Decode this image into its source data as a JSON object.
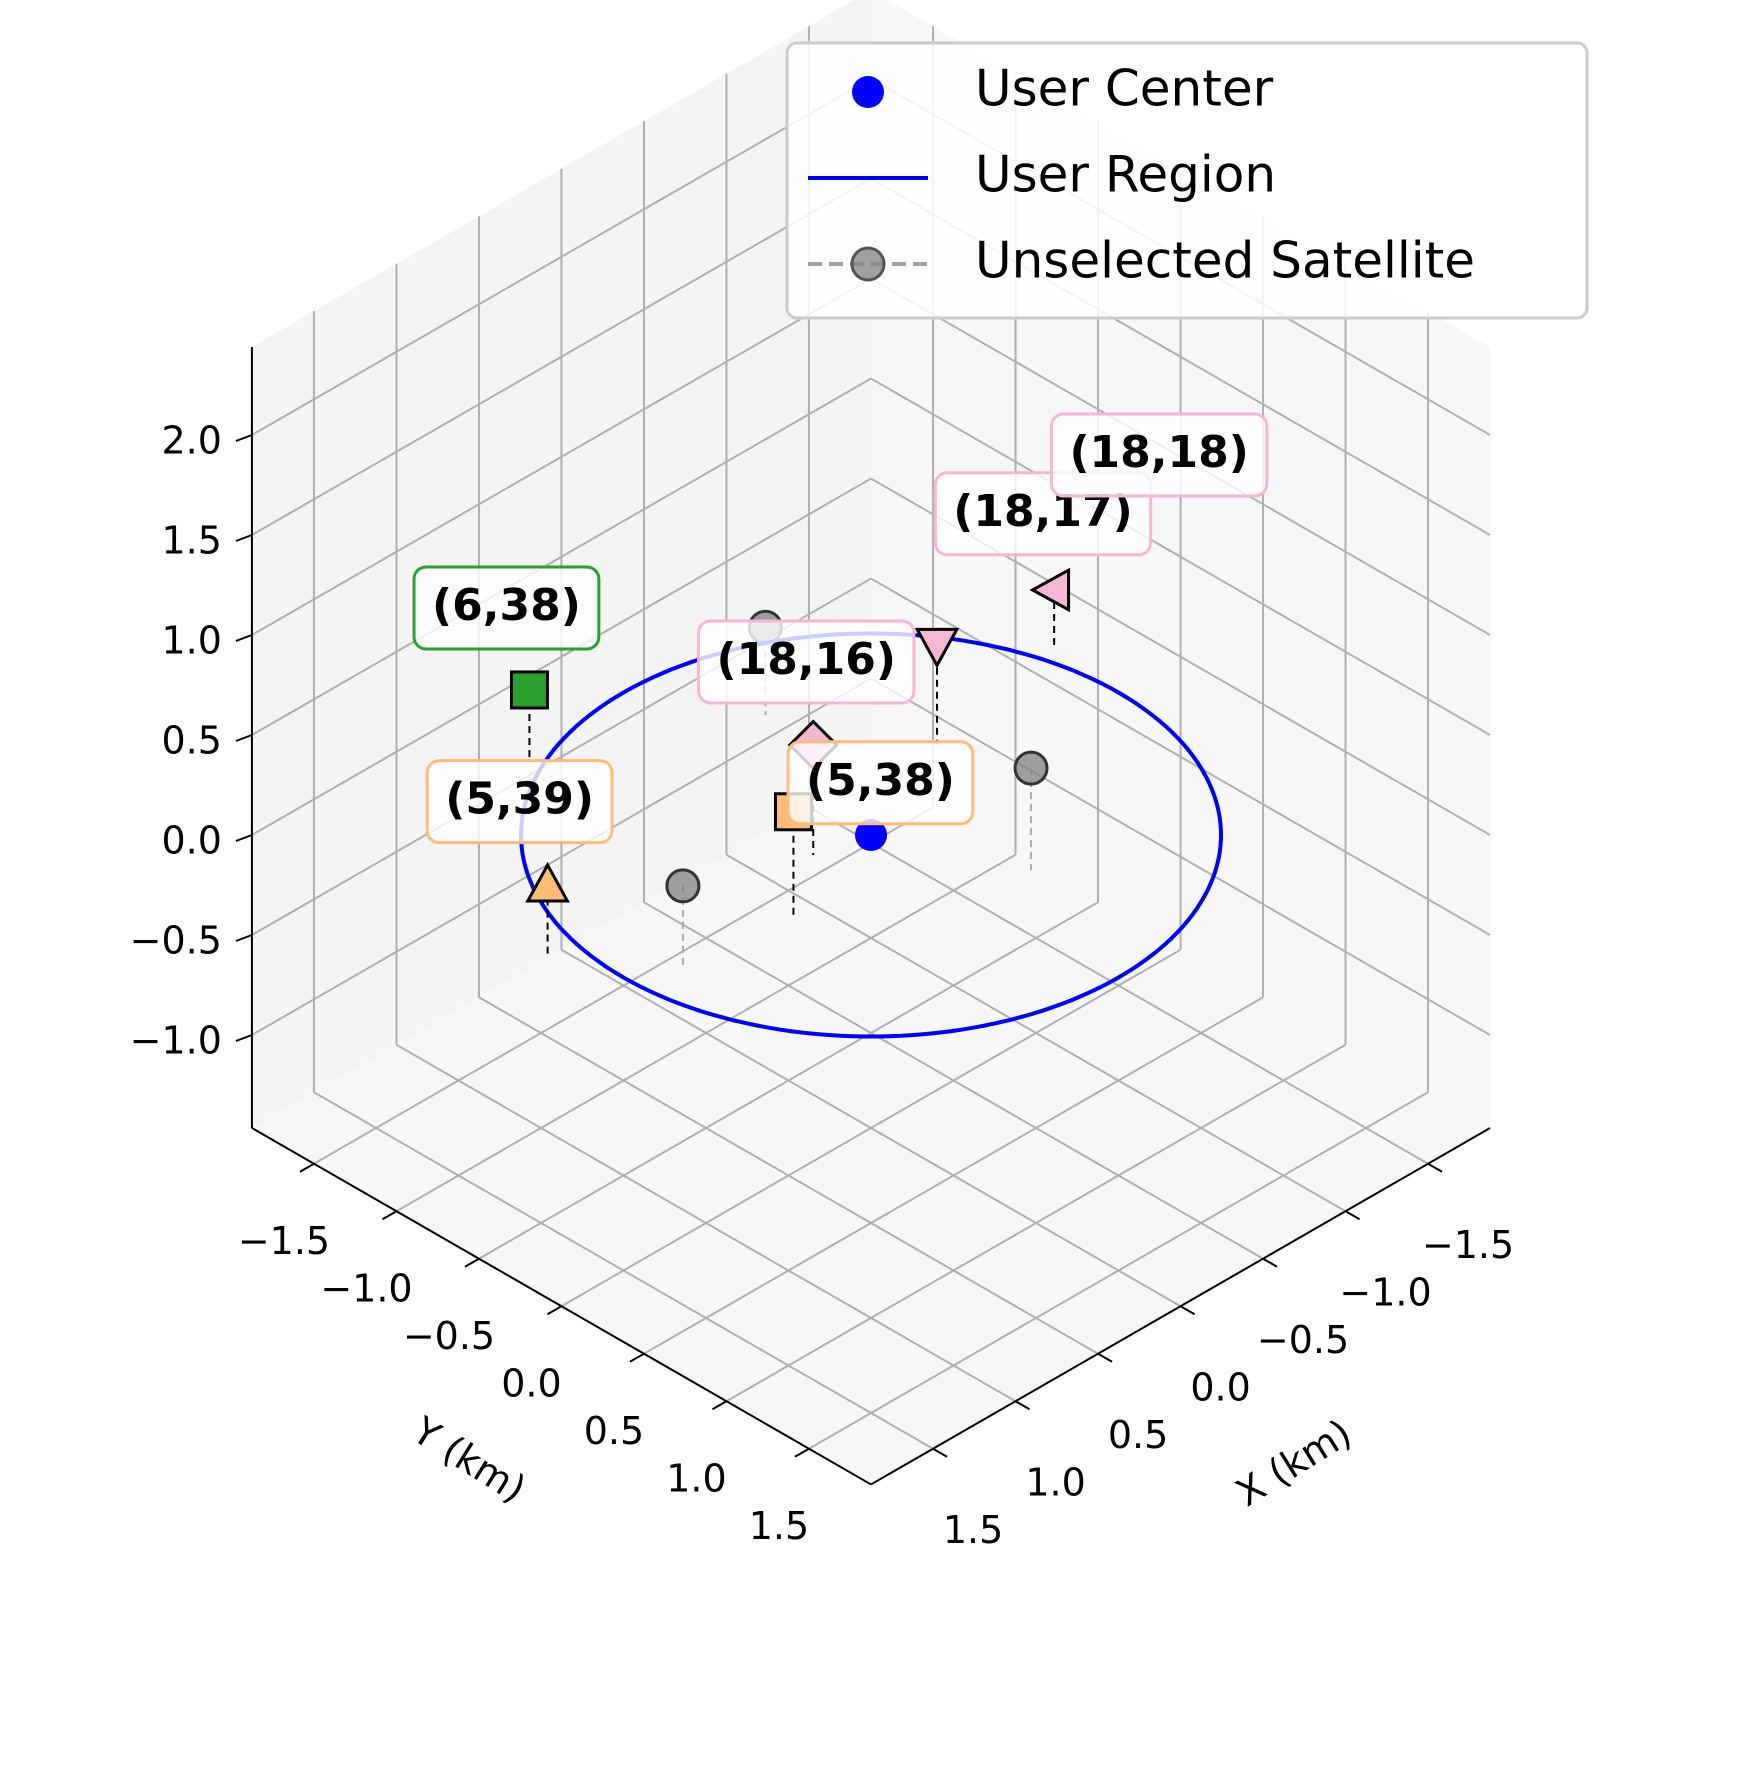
{
  "chart_data": {
    "type": "scatter3d",
    "xlabel": "X (km)",
    "ylabel": "Y (km)",
    "xlim": [
      -1.876,
      1.876
    ],
    "ylim": [
      -1.876,
      1.876
    ],
    "zlim": [
      -1.465,
      2.44
    ],
    "xticks": [
      {
        "value": -1.5,
        "label": "−1.5"
      },
      {
        "value": -1.0,
        "label": "−1.0"
      },
      {
        "value": -0.5,
        "label": "−0.5"
      },
      {
        "value": 0,
        "label": "0.0"
      },
      {
        "value": 0.5,
        "label": "0.5"
      },
      {
        "value": 1.0,
        "label": "1.0"
      },
      {
        "value": 1.5,
        "label": "1.5"
      }
    ],
    "yticks": [
      {
        "value": -1.5,
        "label": "−1.5"
      },
      {
        "value": -1.0,
        "label": "−1.0"
      },
      {
        "value": -0.5,
        "label": "−0.5"
      },
      {
        "value": 0,
        "label": "0.0"
      },
      {
        "value": 0.5,
        "label": "0.5"
      },
      {
        "value": 1.0,
        "label": "1.0"
      },
      {
        "value": 1.5,
        "label": "1.5"
      }
    ],
    "zticks": [
      {
        "value": -1.0,
        "label": "−1.0"
      },
      {
        "value": -0.5,
        "label": "−0.5"
      },
      {
        "value": 0,
        "label": "0.0"
      },
      {
        "value": 0.5,
        "label": "0.5"
      },
      {
        "value": 1.0,
        "label": "1.0"
      },
      {
        "value": 1.5,
        "label": "1.5"
      },
      {
        "value": 2.0,
        "label": "2.0"
      }
    ],
    "grid": true,
    "legend": "upper right",
    "series": [
      {
        "name": "User Center",
        "color": "#0000ff",
        "x": [
          0
        ],
        "y": [
          0
        ],
        "z": [
          0
        ]
      },
      {
        "name": "User Region",
        "color": "#0000ff",
        "radius": 1.5
      },
      {
        "name": "Unselected Satellite",
        "color": "#808080",
        "x": [
          -0.3,
          1.28,
          -0.31
        ],
        "y": [
          0.67,
          0.14,
          -0.95
        ],
        "z": [
          0.51,
          0.42,
          0.44
        ]
      }
    ],
    "selected": [
      {
        "label": "(6,38)",
        "marker": "square",
        "color": "#2ca02c",
        "x": 0.64,
        "y": -1.43,
        "z": 0.35
      },
      {
        "label": "(5,39)",
        "marker": "triangle-up",
        "color": "#ffbb78",
        "x": 1.62,
        "y": -0.34,
        "z": 0.35
      },
      {
        "label": "(5,38)",
        "marker": "square",
        "color": "#ffbb78",
        "x": 0.66,
        "y": 0.19,
        "z": 0.52
      },
      {
        "label": "(18,16)",
        "marker": "diamond",
        "color": "#f7b6d2",
        "x": 0.28,
        "y": -0.07,
        "z": 0.55
      },
      {
        "label": "(18,17)",
        "marker": "triangle-down",
        "color": "#f7b6d2",
        "x": -0.68,
        "y": -0.28,
        "z": 0.5
      },
      {
        "label": "(18,18)",
        "marker": "triangle-left",
        "color": "#f7b6d2",
        "x": -1.55,
        "y": -0.44,
        "z": 0.28
      }
    ]
  }
}
